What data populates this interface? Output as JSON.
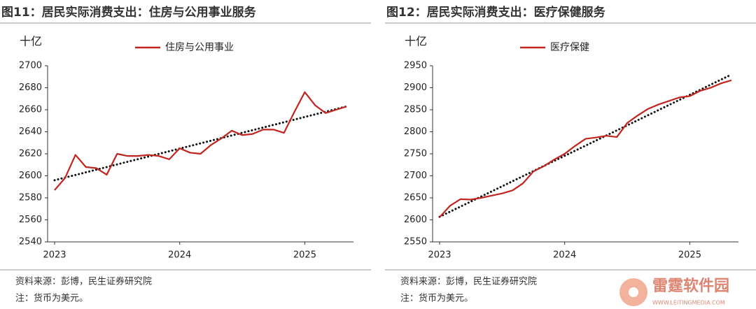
{
  "chart_data": [
    {
      "type": "line",
      "title": "图11：居民实际消费支出：住房与公用事业服务",
      "ylabel": "十亿",
      "categories": [
        "2023",
        null,
        null,
        null,
        null,
        null,
        null,
        null,
        null,
        null,
        null,
        null,
        "2024",
        null,
        null,
        null,
        null,
        null,
        null,
        null,
        null,
        null,
        null,
        null,
        "2025",
        null,
        null,
        null,
        null
      ],
      "series": [
        {
          "name": "住房与公用事业",
          "color": "#c0251f",
          "values": [
            2587,
            2598,
            2619,
            2608,
            2607,
            2601,
            2620,
            2618,
            2618,
            2619,
            2618,
            2615,
            2625,
            2621,
            2620,
            2628,
            2634,
            2641,
            2637,
            2638,
            2642,
            2642,
            2639,
            2658,
            2676,
            2664,
            2657,
            2660,
            2663
          ]
        }
      ],
      "trend": [
        2596,
        2663
      ],
      "ylim": [
        2540,
        2700
      ],
      "yticks": [
        2540,
        2560,
        2580,
        2600,
        2620,
        2640,
        2660,
        2680,
        2700
      ],
      "source": "资料来源：彭博，民生证券研究院",
      "note": "注：货币为美元。"
    },
    {
      "type": "line",
      "title": "图12：居民实际消费支出：医疗保健服务",
      "ylabel": "十亿",
      "categories": [
        "2023",
        null,
        null,
        null,
        null,
        null,
        null,
        null,
        null,
        null,
        null,
        null,
        "2024",
        null,
        null,
        null,
        null,
        null,
        null,
        null,
        null,
        null,
        null,
        null,
        "2025",
        null,
        null,
        null,
        null
      ],
      "series": [
        {
          "name": "医疗保健",
          "color": "#c0251f",
          "values": [
            2606,
            2632,
            2647,
            2646,
            2650,
            2655,
            2660,
            2667,
            2683,
            2710,
            2722,
            2737,
            2750,
            2768,
            2784,
            2787,
            2791,
            2788,
            2820,
            2837,
            2852,
            2862,
            2870,
            2878,
            2881,
            2893,
            2900,
            2910,
            2917
          ]
        }
      ],
      "trend": [
        2607,
        2930
      ],
      "ylim": [
        2550,
        2950
      ],
      "yticks": [
        2550,
        2600,
        2650,
        2700,
        2750,
        2800,
        2850,
        2900,
        2950
      ],
      "source": "资料来源：彭博，民生证券研究院",
      "note": "注：货币为美元。"
    }
  ],
  "watermark": {
    "name": "雷霆软件园",
    "url": "WWW.LEITINGMEDIA.COM"
  }
}
